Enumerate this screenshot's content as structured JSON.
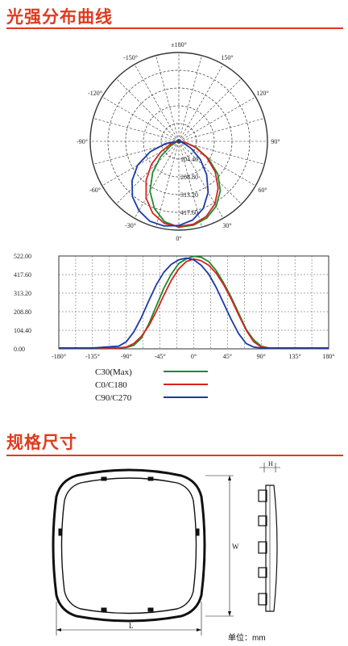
{
  "sections": {
    "light_distribution_title": "光强分布曲线",
    "dimensions_title": "规格尺寸"
  },
  "dimensions": {
    "unit_label": "单位：mm"
  },
  "colors": {
    "accent": "#e03a1e",
    "c30": "#1e8a2e",
    "c0_c180": "#d8231e",
    "c90_c270": "#1a3aa8"
  },
  "chart_data": [
    {
      "type": "polar",
      "angle_labels": [
        "±180°",
        "-150°",
        "150°",
        "-120°",
        "120°",
        "-90°",
        "90°",
        "-60°",
        "60°",
        "-30°",
        "30°",
        "0°"
      ],
      "radial_labels": [
        "104.40",
        "208.80",
        "313.20",
        "417.60"
      ],
      "rlim": [
        0,
        522
      ],
      "series": [
        {
          "name": "C30(Max)",
          "color": "#1e8a2e",
          "angles": [
            0,
            10,
            20,
            30,
            40,
            50,
            60,
            70,
            80,
            90,
            -10,
            -20,
            -30,
            -40,
            -50,
            -60,
            -70,
            -80,
            -90
          ],
          "values": [
            505,
            500,
            480,
            440,
            380,
            300,
            200,
            110,
            40,
            10,
            480,
            420,
            340,
            240,
            140,
            60,
            20,
            8,
            5
          ]
        },
        {
          "name": "C0/C180",
          "color": "#d8231e",
          "angles": [
            0,
            10,
            20,
            30,
            40,
            50,
            60,
            70,
            80,
            90,
            -10,
            -20,
            -30,
            -40,
            -50,
            -60,
            -70,
            -80,
            -90
          ],
          "values": [
            500,
            495,
            470,
            425,
            360,
            280,
            190,
            105,
            40,
            10,
            490,
            450,
            385,
            300,
            210,
            120,
            55,
            15,
            5
          ]
        },
        {
          "name": "C90/C270",
          "color": "#1a3aa8",
          "angles": [
            0,
            10,
            20,
            30,
            40,
            50,
            60,
            70,
            80,
            90,
            -10,
            -20,
            -30,
            -40,
            -50,
            -60,
            -70,
            -80,
            -90
          ],
          "values": [
            495,
            470,
            420,
            345,
            255,
            165,
            85,
            30,
            10,
            5,
            505,
            500,
            470,
            425,
            360,
            280,
            180,
            80,
            10
          ]
        }
      ]
    },
    {
      "type": "line",
      "x_ticks": [
        "-180°",
        "-135°",
        "-90°",
        "-45°",
        "0°",
        "45°",
        "90°",
        "135°",
        "180°"
      ],
      "y_ticks": [
        "0.00",
        "104.40",
        "208.80",
        "313.20",
        "417.60",
        "522.00"
      ],
      "xlim": [
        -180,
        180
      ],
      "ylim": [
        0,
        522
      ],
      "grid": true,
      "legend_position": "bottom",
      "series": [
        {
          "name": "C30(Max)",
          "color": "#1e8a2e",
          "x": [
            -180,
            -135,
            -100,
            -90,
            -80,
            -70,
            -60,
            -50,
            -40,
            -30,
            -20,
            -10,
            0,
            10,
            20,
            30,
            40,
            50,
            60,
            70,
            80,
            90,
            100,
            135,
            180
          ],
          "y": [
            5,
            5,
            5,
            8,
            20,
            60,
            140,
            240,
            340,
            420,
            480,
            505,
            520,
            515,
            490,
            440,
            370,
            290,
            200,
            110,
            50,
            15,
            5,
            5,
            5
          ]
        },
        {
          "name": "C0/C180",
          "color": "#d8231e",
          "x": [
            -180,
            -135,
            -100,
            -90,
            -80,
            -70,
            -60,
            -50,
            -40,
            -30,
            -20,
            -10,
            0,
            10,
            20,
            30,
            40,
            50,
            60,
            70,
            80,
            90,
            100,
            135,
            180
          ],
          "y": [
            5,
            5,
            5,
            10,
            30,
            70,
            130,
            210,
            300,
            385,
            450,
            490,
            505,
            495,
            470,
            425,
            360,
            280,
            190,
            105,
            40,
            10,
            5,
            5,
            5
          ]
        },
        {
          "name": "C90/C270",
          "color": "#1a3aa8",
          "x": [
            -180,
            -135,
            -100,
            -90,
            -80,
            -70,
            -60,
            -50,
            -40,
            -30,
            -20,
            -10,
            0,
            10,
            20,
            30,
            40,
            50,
            60,
            70,
            80,
            90,
            100,
            135,
            180
          ],
          "y": [
            5,
            5,
            15,
            40,
            95,
            175,
            270,
            360,
            430,
            475,
            500,
            510,
            500,
            470,
            420,
            345,
            255,
            165,
            85,
            30,
            10,
            5,
            5,
            5,
            5
          ]
        }
      ]
    }
  ]
}
